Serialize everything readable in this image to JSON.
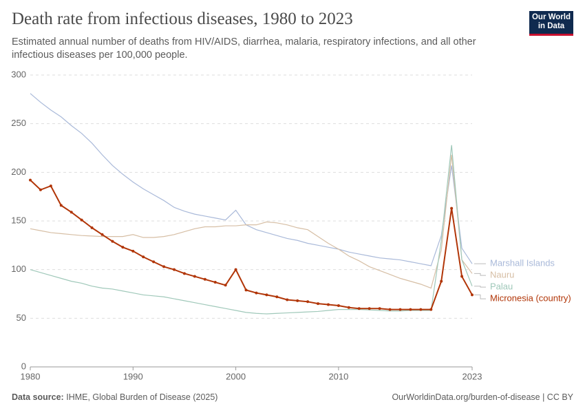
{
  "chart_data": {
    "type": "line",
    "title": "Death rate from infectious diseases, 1980 to 2023",
    "subtitle": "Estimated annual number of deaths from HIV/AIDS, diarrhea, malaria, respiratory infections, and all other infectious diseases per 100,000 people.",
    "logo": [
      "Our World",
      "in Data"
    ],
    "source_label": "Data source:",
    "source": "IHME, Global Burden of Disease (2025)",
    "credit": "OurWorldinData.org/burden-of-disease | CC BY",
    "x": [
      1980,
      1981,
      1982,
      1983,
      1984,
      1985,
      1986,
      1987,
      1988,
      1989,
      1990,
      1991,
      1992,
      1993,
      1994,
      1995,
      1996,
      1997,
      1998,
      1999,
      2000,
      2001,
      2002,
      2003,
      2004,
      2005,
      2006,
      2007,
      2008,
      2009,
      2010,
      2011,
      2012,
      2013,
      2014,
      2015,
      2016,
      2017,
      2018,
      2019,
      2020,
      2021,
      2022,
      2023
    ],
    "xlim": [
      1980,
      2023
    ],
    "xticks": [
      1980,
      1990,
      2000,
      2010,
      2023
    ],
    "ylim": [
      0,
      300
    ],
    "yticks": [
      0,
      50,
      100,
      150,
      200,
      250,
      300
    ],
    "grid": true,
    "series": [
      {
        "name": "Marshall Islands",
        "color": "#a9b9d9",
        "markers": false,
        "values": [
          281,
          272,
          264,
          257,
          248,
          240,
          230,
          218,
          207,
          198,
          190,
          183,
          177,
          171,
          164,
          160,
          157,
          155,
          153,
          151,
          161,
          146,
          141,
          138,
          135,
          132,
          130,
          127,
          125,
          123,
          121,
          118,
          116,
          114,
          112,
          111,
          110,
          108,
          106,
          104,
          135,
          207,
          122,
          106
        ]
      },
      {
        "name": "Nauru",
        "color": "#d6bea4",
        "markers": false,
        "values": [
          142,
          140,
          138,
          137,
          136,
          135,
          134.5,
          134,
          134,
          134,
          136,
          133,
          133,
          134,
          136,
          139,
          142,
          144,
          144,
          145,
          145,
          146,
          146,
          149,
          148,
          146,
          143,
          141,
          134,
          127,
          121,
          114,
          109,
          103,
          99,
          95,
          91,
          88,
          85,
          81,
          120,
          218,
          110,
          96
        ]
      },
      {
        "name": "Palau",
        "color": "#9fc8b9",
        "markers": false,
        "values": [
          100,
          97,
          94,
          91,
          88,
          86,
          83,
          81,
          80,
          78,
          76,
          74,
          73,
          72,
          70,
          68,
          66,
          64,
          62,
          60,
          58,
          56,
          55,
          54.5,
          55,
          55.5,
          56,
          56.5,
          57,
          58,
          59,
          59,
          59,
          58.5,
          58,
          57.5,
          57.5,
          58,
          58,
          58,
          130,
          228,
          110,
          83
        ]
      },
      {
        "name": "Micronesia (country)",
        "color": "#b13507",
        "markers": true,
        "values": [
          192,
          182,
          186,
          166,
          159,
          151,
          143,
          136,
          129,
          123,
          119,
          113,
          108,
          103,
          100,
          96,
          93,
          90,
          87,
          84,
          100,
          79,
          76,
          74,
          72,
          69,
          68,
          67,
          65,
          64,
          63,
          61,
          60,
          60,
          60,
          59,
          59,
          59,
          59,
          59,
          88,
          163,
          93,
          74
        ]
      }
    ]
  }
}
